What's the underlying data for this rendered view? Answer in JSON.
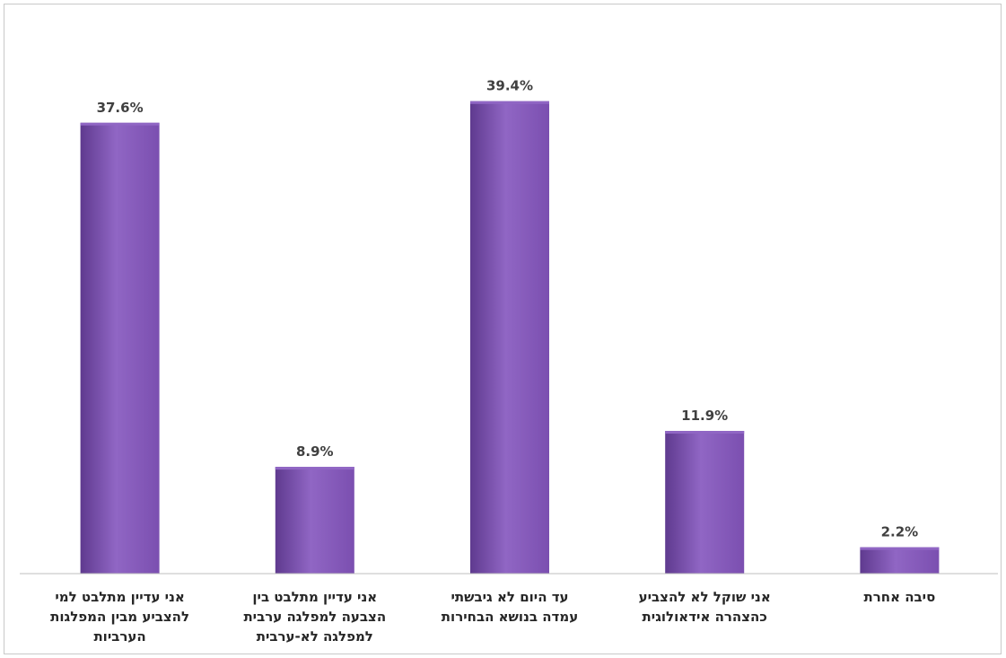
{
  "chart_data": {
    "type": "bar",
    "title": "",
    "xlabel": "",
    "ylabel": "",
    "ylim": [
      0,
      42
    ],
    "grid": false,
    "legend": "none",
    "bar_color": "#7b4fb0",
    "bar_color_light": "#9066c4",
    "bar_color_dark": "#5f3a8f",
    "axis_color": "#bfbfbf",
    "categories": [
      [
        "אני עדיין מתלבט למי",
        "להצביע מבין המפלגות",
        "הערביות"
      ],
      [
        "אני עדיין מתלבט בין",
        "הצבעה למפלגה ערבית",
        "למפלגה לא-ערבית"
      ],
      [
        "עד היום לא גיבשתי",
        "עמדה בנושא הבחירות"
      ],
      [
        "אני שוקל לא להצביע",
        "כהצהרה אידאולוגית"
      ],
      [
        "סיבה אחרת"
      ]
    ],
    "values": [
      37.6,
      8.9,
      39.4,
      11.9,
      2.2
    ],
    "value_labels": [
      "37.6%",
      "8.9%",
      "39.4%",
      "11.9%",
      "2.2%"
    ]
  }
}
